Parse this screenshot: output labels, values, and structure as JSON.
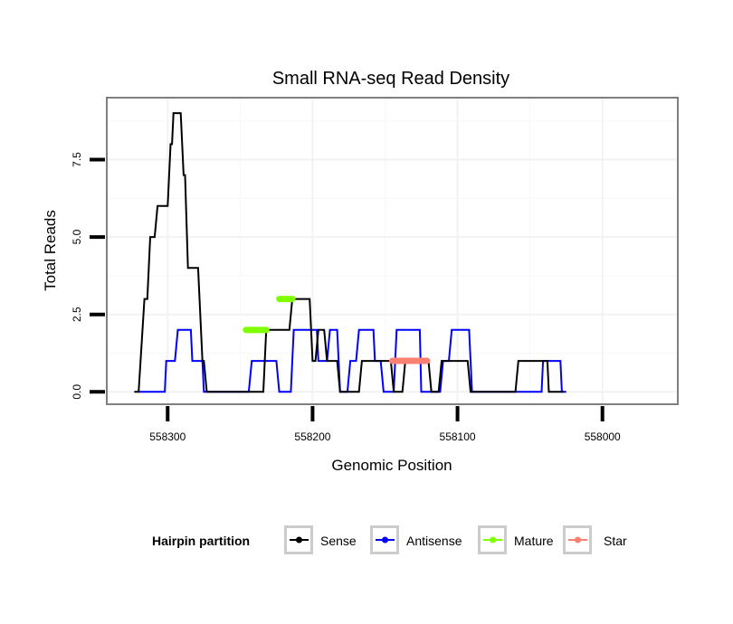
{
  "chart_data": {
    "type": "line",
    "title": "Small RNA-seq Read Density",
    "xlabel": "Genomic Position",
    "ylabel": "Total Reads",
    "x_reversed": true,
    "xlim": [
      558342,
      557948
    ],
    "ylim": [
      -0.4,
      9.5
    ],
    "x_ticks": [
      558300,
      558200,
      558100,
      558000
    ],
    "x_tick_labels": [
      "558300",
      "558200",
      "558100",
      "558000"
    ],
    "y_ticks": [
      0.0,
      2.5,
      5.0,
      7.5
    ],
    "y_tick_labels": [
      "0.0",
      "2.5",
      "5.0",
      "7.5"
    ],
    "grid": true,
    "legend": {
      "title": "Hairpin partition",
      "position": "bottom",
      "entries": [
        {
          "name": "Sense",
          "color": "#000000"
        },
        {
          "name": "Antisense",
          "color": "#0000ff"
        },
        {
          "name": "Mature",
          "color": "#7fff00"
        },
        {
          "name": "Star",
          "color": "#fa8072"
        }
      ]
    },
    "series": [
      {
        "name": "Sense",
        "color": "#000000",
        "points": [
          [
            558323,
            0
          ],
          [
            558320,
            0
          ],
          [
            558316,
            3
          ],
          [
            558314,
            3
          ],
          [
            558312,
            5
          ],
          [
            558309,
            5
          ],
          [
            558307,
            6
          ],
          [
            558300,
            6
          ],
          [
            558298,
            8
          ],
          [
            558297,
            8
          ],
          [
            558296,
            9
          ],
          [
            558291,
            9
          ],
          [
            558289,
            7
          ],
          [
            558288,
            7
          ],
          [
            558286,
            4
          ],
          [
            558279,
            4
          ],
          [
            558276,
            1
          ],
          [
            558275,
            1
          ],
          [
            558273,
            0
          ],
          [
            558250,
            0
          ],
          [
            558245,
            0
          ],
          [
            558236,
            0
          ],
          [
            558234,
            0
          ],
          [
            558232,
            2
          ],
          [
            558226,
            2
          ],
          [
            558219,
            2
          ],
          [
            558216,
            2
          ],
          [
            558214,
            3
          ],
          [
            558202,
            3
          ],
          [
            558200,
            1
          ],
          [
            558198,
            1
          ],
          [
            558196,
            2
          ],
          [
            558192,
            2
          ],
          [
            558190,
            1
          ],
          [
            558183,
            1
          ],
          [
            558181,
            0
          ],
          [
            558173,
            0
          ],
          [
            558168,
            0
          ],
          [
            558166,
            1
          ],
          [
            558157,
            1
          ],
          [
            558150,
            1
          ],
          [
            558146,
            1
          ],
          [
            558144,
            0
          ],
          [
            558138,
            0
          ],
          [
            558136,
            1
          ],
          [
            558120,
            1
          ],
          [
            558118,
            0
          ],
          [
            558113,
            0
          ],
          [
            558111,
            1
          ],
          [
            558093,
            1
          ],
          [
            558091,
            0
          ],
          [
            558080,
            0
          ],
          [
            558060,
            0
          ],
          [
            558058,
            1
          ],
          [
            558038,
            1
          ],
          [
            558037,
            0
          ],
          [
            558027,
            0
          ]
        ]
      },
      {
        "name": "Antisense",
        "color": "#0000ff",
        "points": [
          [
            558320,
            0
          ],
          [
            558302,
            0
          ],
          [
            558301,
            1
          ],
          [
            558295,
            1
          ],
          [
            558293,
            2
          ],
          [
            558284,
            2
          ],
          [
            558283,
            1
          ],
          [
            558276,
            1
          ],
          [
            558275,
            0
          ],
          [
            558267,
            0
          ],
          [
            558244,
            0
          ],
          [
            558242,
            1
          ],
          [
            558225,
            1
          ],
          [
            558223,
            0
          ],
          [
            558215,
            0
          ],
          [
            558213,
            2
          ],
          [
            558197,
            2
          ],
          [
            558196,
            1
          ],
          [
            558190,
            1
          ],
          [
            558188,
            2
          ],
          [
            558183,
            2
          ],
          [
            558181,
            0
          ],
          [
            558176,
            0
          ],
          [
            558174,
            1
          ],
          [
            558170,
            1
          ],
          [
            558168,
            2
          ],
          [
            558158,
            2
          ],
          [
            558157,
            1
          ],
          [
            558153,
            1
          ],
          [
            558151,
            0
          ],
          [
            558144,
            0
          ],
          [
            558142,
            2
          ],
          [
            558126,
            2
          ],
          [
            558125,
            0
          ],
          [
            558112,
            0
          ],
          [
            558110,
            1
          ],
          [
            558106,
            1
          ],
          [
            558104,
            2
          ],
          [
            558092,
            2
          ],
          [
            558090,
            0
          ],
          [
            558060,
            0
          ],
          [
            558042,
            0
          ],
          [
            558041,
            1
          ],
          [
            558029,
            1
          ],
          [
            558028,
            0
          ],
          [
            558025,
            0
          ]
        ]
      },
      {
        "name": "Mature",
        "color": "#7fff00",
        "segments": [
          {
            "x": [
              558246,
              558232
            ],
            "y": 2
          },
          {
            "x": [
              558223,
              558214
            ],
            "y": 3
          }
        ]
      },
      {
        "name": "Star",
        "color": "#fa8072",
        "segments": [
          {
            "x": [
              558145,
              558121
            ],
            "y": 1
          }
        ]
      }
    ]
  }
}
